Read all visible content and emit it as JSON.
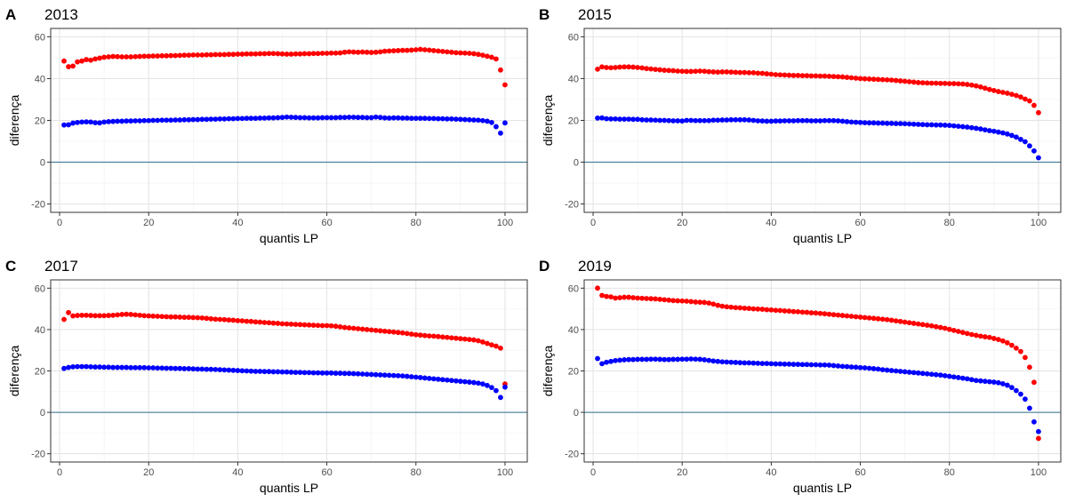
{
  "chart_data": [
    {
      "type": "scatter",
      "tag": "A",
      "title": "2013",
      "xlabel": "quantis LP",
      "ylabel": "diferença",
      "xlim": [
        -2,
        105
      ],
      "ylim": [
        -24,
        64
      ],
      "xticks": [
        0,
        20,
        40,
        60,
        80,
        100
      ],
      "yticks": [
        -20,
        0,
        20,
        40,
        60
      ],
      "hline": 0,
      "grid": true,
      "colors": {
        "upper": "#ff0000",
        "lower": "#0000ff",
        "hline": "#2f6f8f"
      },
      "series": [
        {
          "role": "upper",
          "x_start": 1,
          "x_step": 1,
          "values": [
            48.4,
            45.7,
            46.0,
            48.0,
            48.4,
            49.1,
            48.8,
            49.4,
            49.8,
            50.2,
            50.4,
            50.6,
            50.5,
            50.4,
            50.4,
            50.4,
            50.5,
            50.6,
            50.7,
            50.7,
            50.8,
            50.8,
            50.9,
            50.9,
            51.0,
            51.0,
            51.1,
            51.2,
            51.2,
            51.3,
            51.3,
            51.3,
            51.4,
            51.4,
            51.5,
            51.5,
            51.5,
            51.6,
            51.6,
            51.7,
            51.7,
            51.8,
            51.8,
            51.8,
            51.9,
            51.9,
            52.0,
            52.0,
            51.9,
            51.8,
            51.7,
            51.7,
            51.8,
            51.8,
            51.9,
            51.9,
            52.0,
            52.0,
            52.1,
            52.1,
            52.2,
            52.2,
            52.3,
            52.6,
            52.8,
            52.7,
            52.6,
            52.7,
            52.6,
            52.5,
            52.6,
            52.8,
            53.1,
            53.2,
            53.3,
            53.4,
            53.5,
            53.5,
            53.6,
            53.8,
            54.0,
            53.8,
            53.6,
            53.4,
            53.2,
            53.0,
            52.8,
            52.6,
            52.4,
            52.3,
            52.2,
            52.1,
            51.9,
            51.6,
            51.2,
            50.7,
            50.2,
            49.4,
            44.1,
            37.0
          ]
        },
        {
          "role": "lower",
          "x_start": 1,
          "x_step": 1,
          "values": [
            17.8,
            17.9,
            18.7,
            19.0,
            19.2,
            19.3,
            19.2,
            18.9,
            18.8,
            19.2,
            19.4,
            19.5,
            19.6,
            19.6,
            19.7,
            19.7,
            19.8,
            19.8,
            19.9,
            19.9,
            20.0,
            20.0,
            20.1,
            20.1,
            20.1,
            20.2,
            20.2,
            20.3,
            20.3,
            20.4,
            20.4,
            20.5,
            20.5,
            20.6,
            20.6,
            20.7,
            20.7,
            20.8,
            20.8,
            20.9,
            20.9,
            21.0,
            21.0,
            21.0,
            21.1,
            21.1,
            21.2,
            21.2,
            21.3,
            21.4,
            21.6,
            21.5,
            21.4,
            21.3,
            21.3,
            21.2,
            21.2,
            21.2,
            21.3,
            21.3,
            21.3,
            21.3,
            21.4,
            21.4,
            21.5,
            21.5,
            21.4,
            21.4,
            21.3,
            21.3,
            21.6,
            21.4,
            21.2,
            21.1,
            21.2,
            21.2,
            21.1,
            21.1,
            21.0,
            21.0,
            21.0,
            21.0,
            20.9,
            20.9,
            20.8,
            20.8,
            20.7,
            20.7,
            20.6,
            20.5,
            20.4,
            20.3,
            20.2,
            20.1,
            19.9,
            19.6,
            19.0,
            17.0,
            13.9,
            18.8
          ]
        }
      ]
    },
    {
      "type": "scatter",
      "tag": "B",
      "title": "2015",
      "xlabel": "quantis LP",
      "ylabel": "diferença",
      "xlim": [
        -2,
        105
      ],
      "ylim": [
        -24,
        64
      ],
      "xticks": [
        0,
        20,
        40,
        60,
        80,
        100
      ],
      "yticks": [
        -20,
        0,
        20,
        40,
        60
      ],
      "hline": 0,
      "grid": true,
      "colors": {
        "upper": "#ff0000",
        "lower": "#0000ff",
        "hline": "#2f6f8f"
      },
      "series": [
        {
          "role": "upper",
          "x_start": 1,
          "x_step": 1,
          "values": [
            44.5,
            45.6,
            45.3,
            45.2,
            45.3,
            45.5,
            45.6,
            45.6,
            45.5,
            45.3,
            45.1,
            44.8,
            44.6,
            44.4,
            44.2,
            44.0,
            43.9,
            43.8,
            43.6,
            43.5,
            43.4,
            43.4,
            43.5,
            43.6,
            43.5,
            43.3,
            43.2,
            43.1,
            43.2,
            43.2,
            43.1,
            43.0,
            42.9,
            42.9,
            42.8,
            42.8,
            42.6,
            42.5,
            42.3,
            42.1,
            41.9,
            41.8,
            41.7,
            41.6,
            41.5,
            41.5,
            41.4,
            41.4,
            41.3,
            41.3,
            41.2,
            41.2,
            41.1,
            41.0,
            40.9,
            40.8,
            40.6,
            40.4,
            40.2,
            40.0,
            39.9,
            39.8,
            39.7,
            39.6,
            39.5,
            39.4,
            39.3,
            39.1,
            38.9,
            38.7,
            38.5,
            38.3,
            38.1,
            38.0,
            37.9,
            37.8,
            37.8,
            37.7,
            37.7,
            37.6,
            37.6,
            37.5,
            37.4,
            37.2,
            36.9,
            36.5,
            36.0,
            35.4,
            34.8,
            34.3,
            33.8,
            33.4,
            33.0,
            32.5,
            31.9,
            31.2,
            30.2,
            29.3,
            27.2,
            23.7
          ]
        },
        {
          "role": "lower",
          "x_start": 1,
          "x_step": 1,
          "values": [
            21.1,
            21.2,
            20.8,
            20.7,
            20.7,
            20.6,
            20.6,
            20.6,
            20.5,
            20.5,
            20.3,
            20.2,
            20.2,
            20.1,
            20.0,
            20.0,
            19.9,
            19.8,
            19.8,
            19.7,
            20.0,
            20.0,
            19.9,
            19.9,
            19.9,
            19.9,
            20.1,
            20.1,
            20.2,
            20.2,
            20.3,
            20.3,
            20.3,
            20.3,
            20.2,
            20.0,
            19.8,
            19.7,
            19.6,
            19.6,
            19.7,
            19.7,
            19.8,
            19.8,
            19.8,
            19.9,
            19.9,
            19.9,
            19.8,
            19.8,
            19.8,
            19.9,
            19.9,
            19.9,
            19.8,
            19.6,
            19.4,
            19.2,
            19.1,
            19.0,
            18.9,
            18.8,
            18.8,
            18.7,
            18.7,
            18.6,
            18.6,
            18.5,
            18.5,
            18.4,
            18.3,
            18.2,
            18.1,
            18.0,
            17.9,
            17.9,
            17.8,
            17.8,
            17.7,
            17.6,
            17.4,
            17.2,
            17.0,
            16.8,
            16.5,
            16.2,
            15.9,
            15.5,
            15.1,
            14.8,
            14.4,
            14.0,
            13.5,
            12.8,
            12.0,
            10.9,
            9.8,
            7.8,
            5.4,
            2.1
          ]
        }
      ]
    },
    {
      "type": "scatter",
      "tag": "C",
      "title": "2017",
      "xlabel": "quantis LP",
      "ylabel": "diferença",
      "xlim": [
        -2,
        105
      ],
      "ylim": [
        -24,
        64
      ],
      "xticks": [
        0,
        20,
        40,
        60,
        80,
        100
      ],
      "yticks": [
        -20,
        0,
        20,
        40,
        60
      ],
      "hline": 0,
      "grid": true,
      "colors": {
        "upper": "#ff0000",
        "lower": "#0000ff",
        "hline": "#2f6f8f"
      },
      "series": [
        {
          "role": "upper",
          "x_start": 1,
          "x_step": 1,
          "values": [
            44.9,
            48.2,
            46.6,
            46.8,
            46.9,
            46.9,
            46.8,
            46.7,
            46.7,
            46.7,
            46.8,
            46.9,
            47.1,
            47.3,
            47.4,
            47.3,
            47.1,
            46.9,
            46.7,
            46.6,
            46.5,
            46.4,
            46.3,
            46.2,
            46.1,
            46.1,
            46.0,
            45.9,
            45.9,
            45.8,
            45.7,
            45.6,
            45.4,
            45.2,
            45.0,
            44.9,
            44.8,
            44.6,
            44.5,
            44.3,
            44.2,
            44.0,
            43.9,
            43.7,
            43.6,
            43.4,
            43.3,
            43.1,
            43.0,
            42.8,
            42.7,
            42.6,
            42.5,
            42.4,
            42.3,
            42.2,
            42.1,
            42.0,
            41.9,
            41.9,
            41.8,
            41.6,
            41.3,
            41.0,
            40.8,
            40.6,
            40.4,
            40.2,
            40.0,
            39.8,
            39.6,
            39.4,
            39.2,
            39.0,
            38.8,
            38.6,
            38.4,
            38.1,
            37.8,
            37.5,
            37.3,
            37.1,
            36.9,
            36.8,
            36.6,
            36.4,
            36.2,
            36.0,
            35.8,
            35.6,
            35.4,
            35.2,
            35.0,
            34.6,
            34.0,
            33.3,
            32.6,
            32.0,
            31.0,
            13.7
          ]
        },
        {
          "role": "lower",
          "x_start": 1,
          "x_step": 1,
          "values": [
            21.2,
            21.7,
            22.0,
            22.1,
            22.1,
            22.1,
            22.0,
            21.9,
            21.9,
            21.8,
            21.8,
            21.7,
            21.7,
            21.7,
            21.7,
            21.6,
            21.6,
            21.6,
            21.6,
            21.5,
            21.5,
            21.4,
            21.4,
            21.3,
            21.3,
            21.2,
            21.2,
            21.1,
            21.1,
            21.0,
            20.9,
            20.9,
            20.8,
            20.8,
            20.7,
            20.6,
            20.5,
            20.4,
            20.3,
            20.2,
            20.1,
            20.0,
            19.9,
            19.8,
            19.8,
            19.7,
            19.7,
            19.6,
            19.6,
            19.5,
            19.5,
            19.4,
            19.3,
            19.3,
            19.2,
            19.2,
            19.1,
            19.1,
            19.0,
            19.0,
            19.0,
            18.9,
            18.9,
            18.8,
            18.8,
            18.7,
            18.6,
            18.5,
            18.4,
            18.3,
            18.2,
            18.1,
            18.0,
            17.9,
            17.8,
            17.7,
            17.6,
            17.4,
            17.2,
            17.0,
            16.8,
            16.6,
            16.4,
            16.2,
            16.0,
            15.8,
            15.6,
            15.4,
            15.2,
            15.0,
            14.8,
            14.6,
            14.4,
            14.1,
            13.7,
            13.0,
            12.0,
            10.5,
            7.2,
            12.2
          ]
        }
      ]
    },
    {
      "type": "scatter",
      "tag": "D",
      "title": "2019",
      "xlabel": "quantis LP",
      "ylabel": "diferença",
      "xlim": [
        -2,
        105
      ],
      "ylim": [
        -24,
        64
      ],
      "xticks": [
        0,
        20,
        40,
        60,
        80,
        100
      ],
      "yticks": [
        -20,
        0,
        20,
        40,
        60
      ],
      "hline": 0,
      "grid": true,
      "colors": {
        "upper": "#ff0000",
        "lower": "#0000ff",
        "hline": "#2f6f8f"
      },
      "series": [
        {
          "role": "upper",
          "x_start": 1,
          "x_step": 1,
          "values": [
            60.0,
            56.5,
            56.0,
            55.8,
            55.2,
            55.4,
            55.6,
            55.6,
            55.4,
            55.2,
            55.1,
            55.0,
            54.9,
            54.8,
            54.6,
            54.4,
            54.2,
            54.0,
            53.9,
            53.8,
            53.7,
            53.5,
            53.3,
            53.2,
            53.1,
            52.8,
            52.3,
            51.7,
            51.3,
            51.0,
            50.8,
            50.6,
            50.5,
            50.3,
            50.2,
            50.0,
            49.9,
            49.8,
            49.6,
            49.5,
            49.3,
            49.2,
            49.0,
            48.9,
            48.7,
            48.6,
            48.4,
            48.3,
            48.1,
            48.0,
            47.8,
            47.6,
            47.4,
            47.2,
            47.0,
            46.8,
            46.6,
            46.4,
            46.2,
            46.0,
            45.8,
            45.6,
            45.4,
            45.2,
            45.0,
            44.8,
            44.5,
            44.2,
            43.9,
            43.6,
            43.3,
            43.0,
            42.7,
            42.4,
            42.1,
            41.8,
            41.4,
            41.0,
            40.6,
            40.1,
            39.6,
            39.1,
            38.6,
            38.1,
            37.6,
            37.2,
            36.8,
            36.5,
            36.2,
            35.7,
            35.2,
            34.5,
            33.6,
            32.4,
            31.0,
            29.4,
            26.5,
            21.8,
            14.5,
            -12.6
          ]
        },
        {
          "role": "lower",
          "x_start": 1,
          "x_step": 1,
          "values": [
            26.0,
            23.5,
            24.2,
            24.6,
            25.0,
            25.2,
            25.4,
            25.5,
            25.5,
            25.6,
            25.6,
            25.6,
            25.7,
            25.7,
            25.6,
            25.5,
            25.5,
            25.6,
            25.6,
            25.7,
            25.7,
            25.8,
            25.7,
            25.6,
            25.4,
            25.1,
            24.8,
            24.6,
            24.4,
            24.3,
            24.2,
            24.1,
            24.0,
            23.9,
            23.9,
            23.8,
            23.7,
            23.6,
            23.6,
            23.5,
            23.4,
            23.4,
            23.3,
            23.3,
            23.2,
            23.2,
            23.1,
            23.1,
            23.0,
            23.0,
            22.9,
            22.9,
            22.8,
            22.6,
            22.4,
            22.2,
            22.1,
            21.9,
            21.8,
            21.6,
            21.5,
            21.3,
            21.1,
            20.9,
            20.6,
            20.4,
            20.2,
            20.0,
            19.8,
            19.6,
            19.4,
            19.2,
            19.0,
            18.8,
            18.6,
            18.4,
            18.2,
            18.0,
            17.7,
            17.4,
            17.1,
            16.8,
            16.5,
            16.2,
            15.8,
            15.4,
            15.2,
            15.0,
            14.8,
            14.6,
            14.3,
            13.8,
            13.1,
            12.0,
            10.5,
            8.8,
            6.4,
            2.0,
            -4.6,
            -9.3
          ]
        }
      ]
    }
  ]
}
